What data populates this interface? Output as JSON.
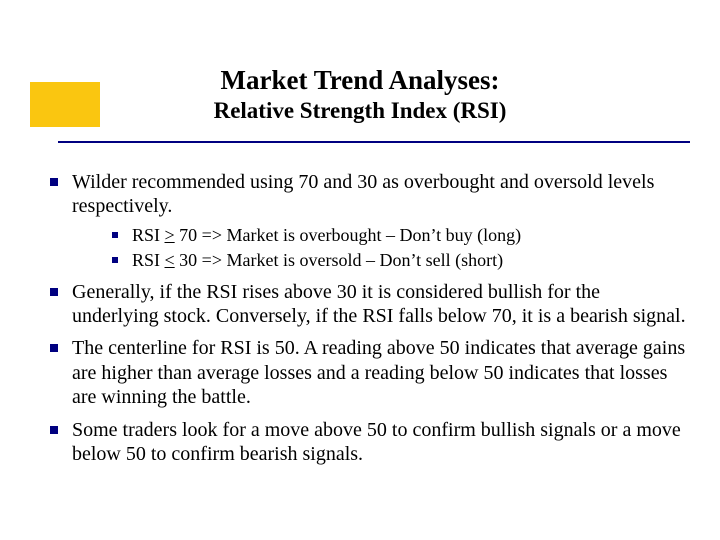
{
  "accent_color": "#fac610",
  "rule_color": "#000080",
  "bullet_color": "#000080",
  "title": {
    "main": "Market Trend Analyses:",
    "sub": "Relative Strength Index (RSI)"
  },
  "bullets": [
    {
      "text": "Wilder recommended using 70 and 30 as overbought and oversold levels respectively.",
      "sub": [
        "RSI > 70 => Market is overbought – Don't buy (long)",
        "RSI < 30 => Market is oversold – Don't sell (short)"
      ]
    },
    {
      "text": "Generally, if the RSI rises above 30 it is considered bullish for the underlying stock. Conversely, if the RSI falls below 70, it is a bearish signal."
    },
    {
      "text": "The centerline for RSI is 50. A reading above 50 indicates that average gains are higher than average losses and a reading below 50 indicates that losses are winning the battle."
    },
    {
      "text": "Some traders look for a move above 50 to confirm bullish signals or a move below 50 to confirm bearish signals."
    }
  ]
}
